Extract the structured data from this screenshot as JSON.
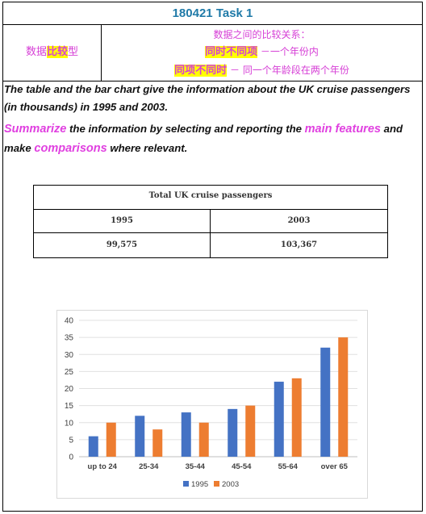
{
  "header": {
    "title": "180421 Task 1"
  },
  "task_type": {
    "label_prefix": "数据",
    "label_highlight": "比较",
    "label_suffix": "型",
    "desc_title": "数据之间的比较关系：",
    "item1_highlight": "同时不同项",
    "item1_text": " －一个年份内",
    "item2_highlight": "同项不同时",
    "item2_text": " － 同一个年龄段在两个年份"
  },
  "prompt": {
    "intro": "The table and the bar chart give the information about the UK cruise passengers (in thousands) in 1995 and 2003.",
    "kw1": "Summarize",
    "t1": " the information by selecting and reporting the ",
    "kw2": "main features",
    "t2": " and make ",
    "kw3": "comparisons",
    "t3": " where relevant."
  },
  "table": {
    "title": "Total UK cruise passengers",
    "headers": [
      "1995",
      "2003"
    ],
    "values": [
      "99,575",
      "103,367"
    ]
  },
  "chart_data": {
    "type": "bar",
    "title": "",
    "xlabel": "",
    "ylabel": "",
    "categories": [
      "up to 24",
      "25-34",
      "35-44",
      "45-54",
      "55-64",
      "over 65"
    ],
    "series": [
      {
        "name": "1995",
        "values": [
          6,
          12,
          13,
          14,
          22,
          32
        ],
        "color": "#4472c4"
      },
      {
        "name": "2003",
        "values": [
          10,
          8,
          10,
          15,
          23,
          35
        ],
        "color": "#ed7d31"
      }
    ],
    "ylim": [
      0,
      40
    ],
    "yticks": [
      0,
      5,
      10,
      15,
      20,
      25,
      30,
      35,
      40
    ],
    "grid": true,
    "legend": "bottom"
  }
}
